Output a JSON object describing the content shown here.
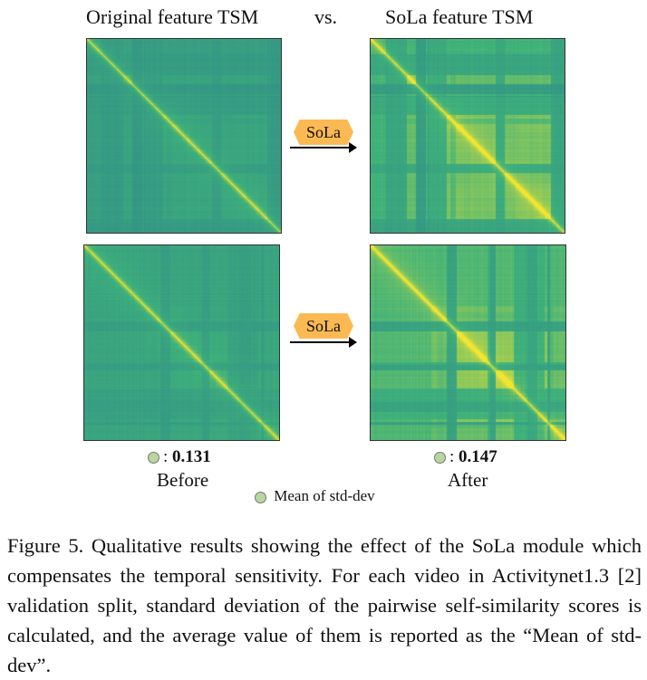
{
  "header": {
    "left": "Original feature TSM",
    "vs": "vs.",
    "right": "SoLa feature TSM"
  },
  "badge": "SoLa",
  "colors": {
    "low": "#2b7f8e",
    "mid": "#3fb27a",
    "high": "#f2e532",
    "badge": "#fbb954",
    "dot": "#b8d7a0"
  },
  "before": {
    "value": "0.131",
    "label": "Before",
    "sep": ":"
  },
  "after": {
    "value": "0.147",
    "label": "After",
    "sep": ":"
  },
  "legend": "Mean of std-dev",
  "caption": "Figure 5. Qualitative results showing the effect of the SoLa module which compensates the temporal sensitivity. For each video in Activitynet1.3 [2] validation split, standard deviation of the pairwise self-similarity scores is calculated, and the average value of them is reported as the “Mean of std-dev”."
}
